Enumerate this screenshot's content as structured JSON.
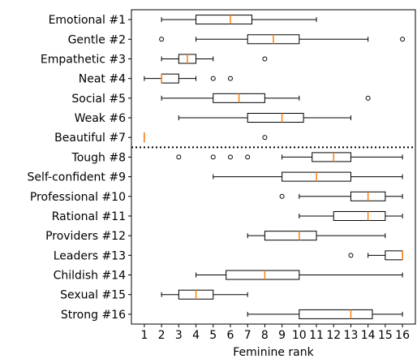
{
  "chart_data": {
    "type": "boxplot",
    "orientation": "horizontal",
    "xlabel": "Feminine rank",
    "xlim": [
      0.25,
      16.75
    ],
    "xticks": [
      1,
      2,
      3,
      4,
      5,
      6,
      7,
      8,
      9,
      10,
      11,
      12,
      13,
      14,
      15,
      16
    ],
    "grid": false,
    "divider_after_category": "Beautiful #7",
    "colors": {
      "box": "#000000",
      "median": "#ff7f0e",
      "divider": "#000000"
    },
    "categories": [
      {
        "label": "Emotional #1",
        "whislo": 2,
        "q1": 4,
        "med": 6,
        "q3": 7.25,
        "whishi": 11,
        "fliers": []
      },
      {
        "label": "Gentle #2",
        "whislo": 4,
        "q1": 7,
        "med": 8.5,
        "q3": 10,
        "whishi": 14,
        "fliers": [
          2,
          16
        ]
      },
      {
        "label": "Empathetic #3",
        "whislo": 2,
        "q1": 3,
        "med": 3.5,
        "q3": 4,
        "whishi": 5,
        "fliers": [
          8
        ]
      },
      {
        "label": "Neat #4",
        "whislo": 1,
        "q1": 2,
        "med": 2,
        "q3": 3,
        "whishi": 4,
        "fliers": [
          5,
          6
        ]
      },
      {
        "label": "Social #5",
        "whislo": 2,
        "q1": 5,
        "med": 6.5,
        "q3": 8,
        "whishi": 10,
        "fliers": [
          14
        ]
      },
      {
        "label": "Weak #6",
        "whislo": 3,
        "q1": 7,
        "med": 9,
        "q3": 10.25,
        "whishi": 13,
        "fliers": []
      },
      {
        "label": "Beautiful #7",
        "whislo": 1,
        "q1": 1,
        "med": 1,
        "q3": 1,
        "whishi": 1,
        "fliers": [
          8
        ]
      },
      {
        "label": "Tough #8",
        "whislo": 9,
        "q1": 10.75,
        "med": 12,
        "q3": 13,
        "whishi": 16,
        "fliers": [
          3,
          5,
          6,
          7
        ]
      },
      {
        "label": "Self-confident #9",
        "whislo": 5,
        "q1": 9,
        "med": 11,
        "q3": 13,
        "whishi": 16,
        "fliers": []
      },
      {
        "label": "Professional #10",
        "whislo": 10,
        "q1": 13,
        "med": 14,
        "q3": 15,
        "whishi": 16,
        "fliers": [
          9
        ]
      },
      {
        "label": "Rational #11",
        "whislo": 10,
        "q1": 12,
        "med": 14,
        "q3": 15,
        "whishi": 16,
        "fliers": []
      },
      {
        "label": "Providers #12",
        "whislo": 7,
        "q1": 8,
        "med": 10,
        "q3": 11,
        "whishi": 15,
        "fliers": []
      },
      {
        "label": "Leaders #13",
        "whislo": 14,
        "q1": 15,
        "med": 16,
        "q3": 16,
        "whishi": 16,
        "fliers": [
          13
        ]
      },
      {
        "label": "Childish #14",
        "whislo": 4,
        "q1": 5.75,
        "med": 8,
        "q3": 10,
        "whishi": 16,
        "fliers": []
      },
      {
        "label": "Sexual #15",
        "whislo": 2,
        "q1": 3,
        "med": 4,
        "q3": 5,
        "whishi": 7,
        "fliers": []
      },
      {
        "label": "Strong #16",
        "whislo": 7,
        "q1": 10,
        "med": 13,
        "q3": 14.25,
        "whishi": 16,
        "fliers": []
      }
    ]
  }
}
